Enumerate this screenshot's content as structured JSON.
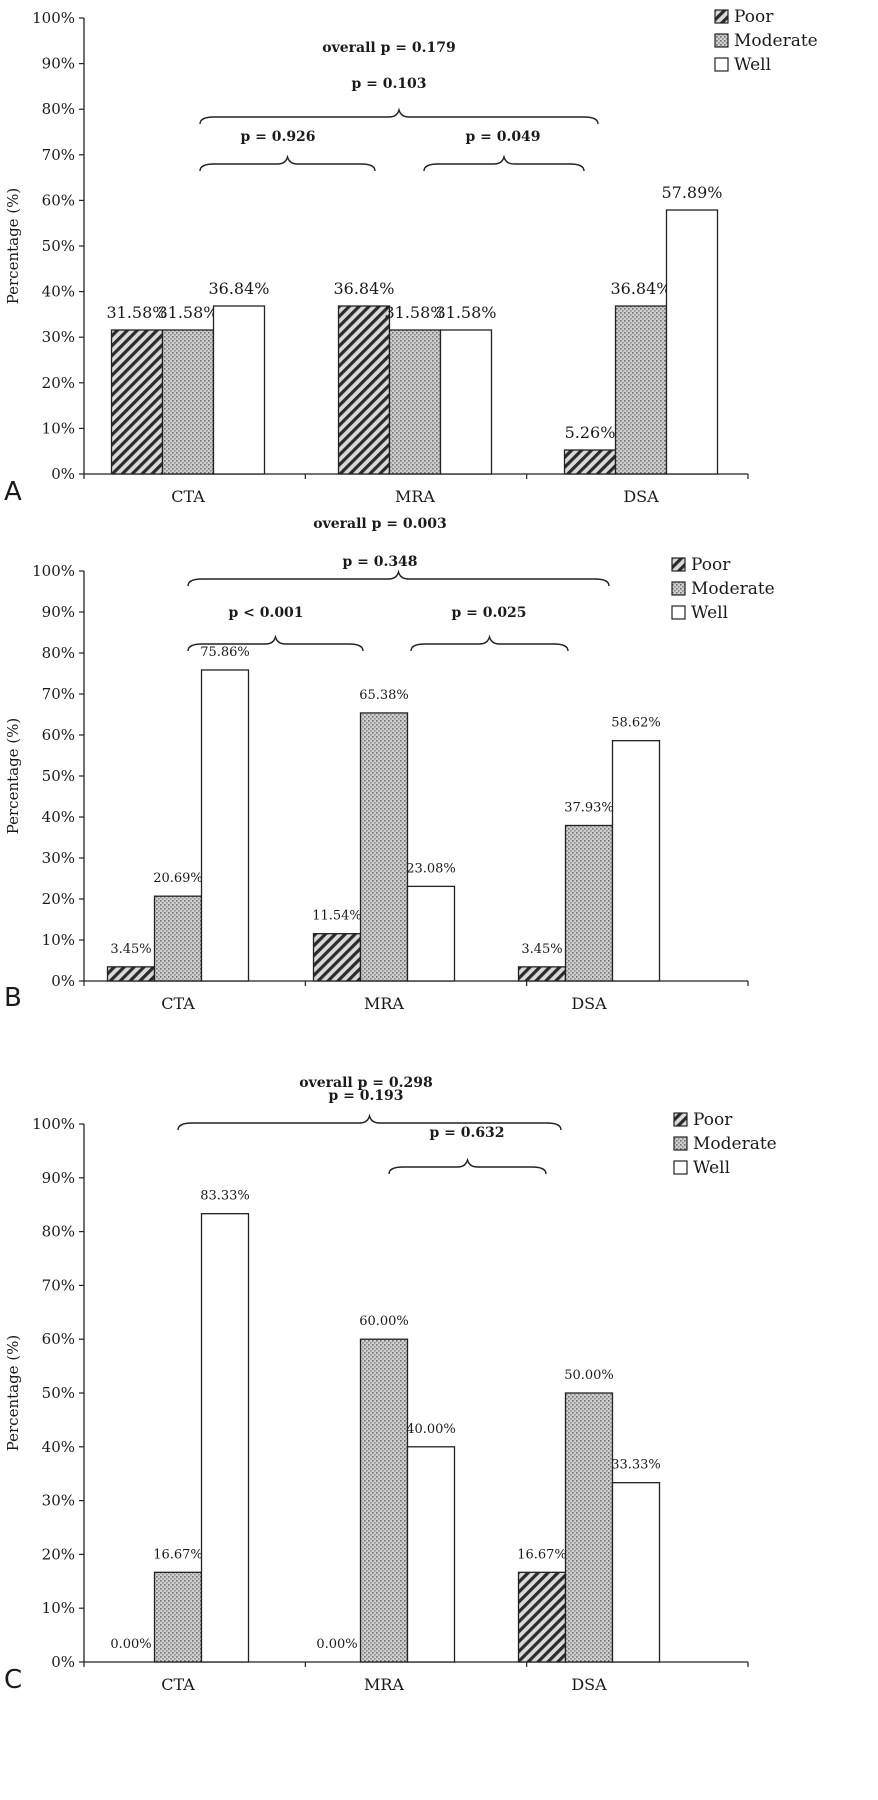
{
  "chart_data": [
    {
      "type": "bar",
      "panel_label": "A",
      "categories": [
        "CTA",
        "MRA",
        "DSA"
      ],
      "series": [
        {
          "name": "Poor",
          "values": [
            31.58,
            36.84,
            5.26
          ],
          "labels": [
            "31.58%",
            "36.84%",
            "5.26%"
          ]
        },
        {
          "name": "Moderate",
          "values": [
            31.58,
            31.58,
            36.84
          ],
          "labels": [
            "31.58%",
            "31.58%",
            "36.84%"
          ]
        },
        {
          "name": "Well",
          "values": [
            36.84,
            31.58,
            57.89
          ],
          "labels": [
            "36.84%",
            "31.58%",
            "57.89%"
          ]
        }
      ],
      "ylabel": "Percentage (%)",
      "ylim": [
        0,
        100
      ],
      "yticks": [
        "0%",
        "10%",
        "20%",
        "30%",
        "40%",
        "50%",
        "60%",
        "70%",
        "80%",
        "90%",
        "100%"
      ],
      "legend": "top-right",
      "annotations": [
        {
          "text": "overall p = 0.179"
        },
        {
          "text": "p = 0.103",
          "from": "CTA",
          "to": "DSA"
        },
        {
          "text": "p = 0.926",
          "from": "CTA",
          "to": "MRA"
        },
        {
          "text": "p = 0.049",
          "from": "MRA",
          "to": "DSA"
        }
      ]
    },
    {
      "type": "bar",
      "panel_label": "B",
      "categories": [
        "CTA",
        "MRA",
        "DSA"
      ],
      "series": [
        {
          "name": "Poor",
          "values": [
            3.45,
            11.54,
            3.45
          ],
          "labels": [
            "3.45%",
            "11.54%",
            "3.45%"
          ]
        },
        {
          "name": "Moderate",
          "values": [
            20.69,
            65.38,
            37.93
          ],
          "labels": [
            "20.69%",
            "65.38%",
            "37.93%"
          ]
        },
        {
          "name": "Well",
          "values": [
            75.86,
            23.08,
            58.62
          ],
          "labels": [
            "75.86%",
            "23.08%",
            "58.62%"
          ]
        }
      ],
      "ylabel": "Percentage (%)",
      "ylim": [
        0,
        100
      ],
      "yticks": [
        "0%",
        "10%",
        "20%",
        "30%",
        "40%",
        "50%",
        "60%",
        "70%",
        "80%",
        "90%",
        "100%"
      ],
      "legend": "top-right",
      "annotations": [
        {
          "text": "overall p = 0.003"
        },
        {
          "text": "p = 0.348",
          "from": "CTA",
          "to": "DSA"
        },
        {
          "text": "p < 0.001",
          "from": "CTA",
          "to": "MRA"
        },
        {
          "text": "p = 0.025",
          "from": "MRA",
          "to": "DSA"
        }
      ]
    },
    {
      "type": "bar",
      "panel_label": "C",
      "categories": [
        "CTA",
        "MRA",
        "DSA"
      ],
      "series": [
        {
          "name": "Poor",
          "values": [
            0.0,
            0.0,
            16.67
          ],
          "labels": [
            "0.00%",
            "0.00%",
            "16.67%"
          ]
        },
        {
          "name": "Moderate",
          "values": [
            16.67,
            60.0,
            50.0
          ],
          "labels": [
            "16.67%",
            "60.00%",
            "50.00%"
          ]
        },
        {
          "name": "Well",
          "values": [
            83.33,
            40.0,
            33.33
          ],
          "labels": [
            "83.33%",
            "40.00%",
            "33.33%"
          ]
        }
      ],
      "ylabel": "Percentage (%)",
      "ylim": [
        0,
        100
      ],
      "yticks": [
        "0%",
        "10%",
        "20%",
        "30%",
        "40%",
        "50%",
        "60%",
        "70%",
        "80%",
        "90%",
        "100%"
      ],
      "legend": "top-right",
      "annotations": [
        {
          "text": "overall p = 0.298"
        },
        {
          "text": "p = 0.193",
          "from": "CTA",
          "to": "DSA"
        },
        {
          "text": "p = 0.632",
          "from": "MRA",
          "to": "DSA"
        }
      ]
    }
  ],
  "colors": {
    "axis": "#222222",
    "well_fill": "#ffffff",
    "hatch": "#2b2b2b",
    "dots": "#b8b8b8"
  }
}
